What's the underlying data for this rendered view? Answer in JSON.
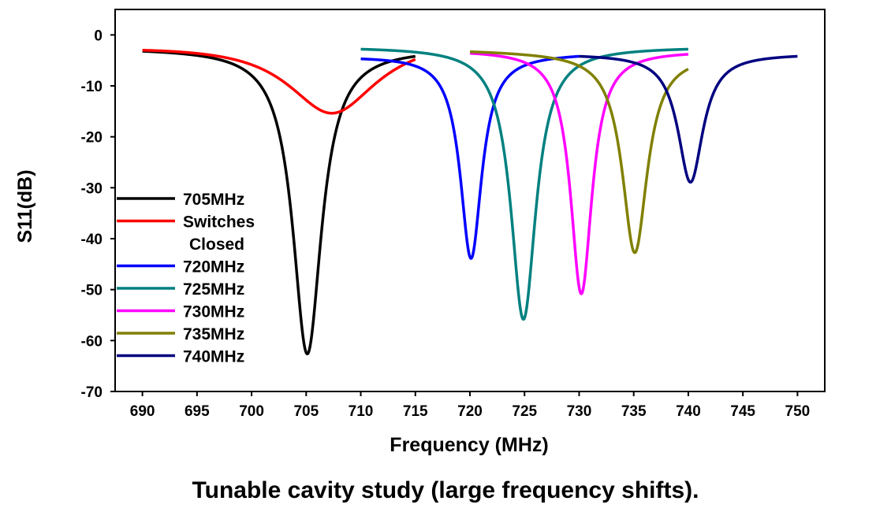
{
  "chart_data": {
    "type": "line",
    "title": "",
    "caption": "Tunable cavity study (large frequency shifts).",
    "xlabel": "Frequency (MHz)",
    "ylabel": "S11(dB)",
    "xlim": [
      687.5,
      752.5
    ],
    "ylim": [
      -70,
      5
    ],
    "xticks": [
      690,
      695,
      700,
      705,
      710,
      715,
      720,
      725,
      730,
      735,
      740,
      745,
      750
    ],
    "yticks": [
      0,
      -10,
      -20,
      -30,
      -40,
      -50,
      -60,
      -70
    ],
    "grid": false,
    "legend_position": "left",
    "series": [
      {
        "name": "705MHz",
        "legend_lines": [
          "705MHz"
        ],
        "color": "#000000",
        "x_range": [
          690,
          715
        ],
        "resonance": 705.1,
        "min_db": -62.5,
        "base_db": -2.5,
        "width": 1.6,
        "endpoints": [
          [
            690,
            -3.2
          ],
          [
            715,
            -4.2
          ]
        ]
      },
      {
        "name": "Switches Closed",
        "legend_lines": [
          "Switches",
          "Closed"
        ],
        "color": "#ff0000",
        "x_range": [
          690,
          715
        ],
        "resonance": 707.4,
        "min_db": -17.0,
        "base_db": -2.5,
        "width": 5.0,
        "endpoints": [
          [
            690,
            -3.0
          ],
          [
            715,
            -4.8
          ]
        ]
      },
      {
        "name": "720MHz",
        "legend_lines": [
          "720MHz"
        ],
        "color": "#0000ff",
        "x_range": [
          710,
          730
        ],
        "resonance": 720.1,
        "min_db": -43.5,
        "base_db": -3.5,
        "width": 1.2,
        "endpoints": [
          [
            710,
            -4.7
          ],
          [
            730,
            -4.2
          ]
        ]
      },
      {
        "name": "725MHz",
        "legend_lines": [
          "725MHz"
        ],
        "color": "#008080",
        "x_range": [
          710,
          740
        ],
        "resonance": 724.9,
        "min_db": -55.8,
        "base_db": -2.3,
        "width": 1.4,
        "endpoints": [
          [
            710,
            -2.8
          ],
          [
            740,
            -2.8
          ]
        ]
      },
      {
        "name": "730MHz",
        "legend_lines": [
          "730MHz"
        ],
        "color": "#ff00ff",
        "x_range": [
          720,
          740
        ],
        "resonance": 730.2,
        "min_db": -50.8,
        "base_db": -3.0,
        "width": 1.2,
        "endpoints": [
          [
            720,
            -3.6
          ],
          [
            740,
            -3.8
          ]
        ]
      },
      {
        "name": "735MHz",
        "legend_lines": [
          "735MHz"
        ],
        "color": "#808000",
        "x_range": [
          720,
          740
        ],
        "resonance": 735.1,
        "min_db": -41.2,
        "base_db": -2.0,
        "width": 1.4,
        "endpoints": [
          [
            720,
            -3.3
          ],
          [
            740,
            -6.7
          ]
        ]
      },
      {
        "name": "740MHz",
        "legend_lines": [
          "740MHz"
        ],
        "color": "#000080",
        "x_range": [
          730,
          750
        ],
        "resonance": 740.2,
        "min_db": -28.2,
        "base_db": -3.0,
        "width": 1.4,
        "endpoints": [
          [
            730,
            -4.2
          ],
          [
            750,
            -4.2
          ]
        ]
      }
    ]
  }
}
